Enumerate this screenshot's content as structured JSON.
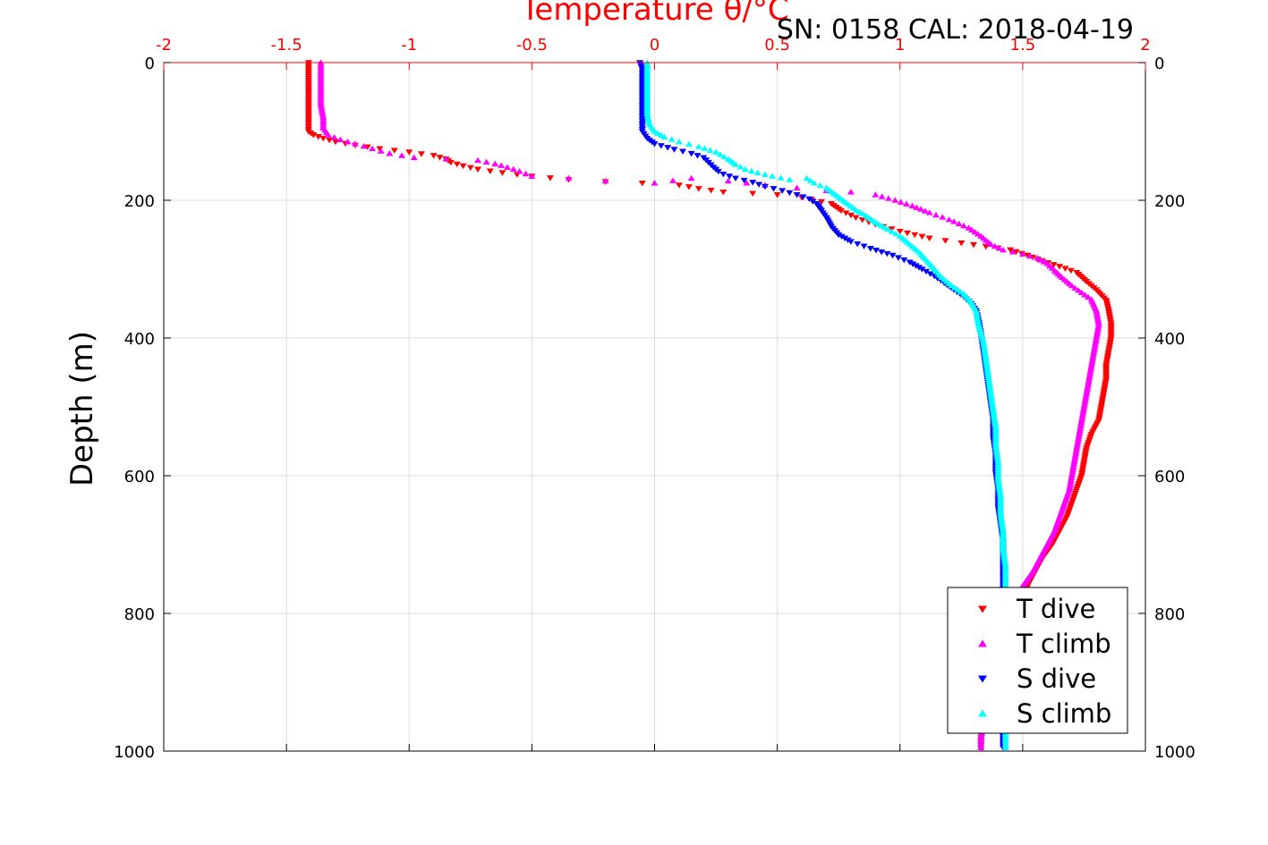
{
  "chart_data": {
    "type": "scatter",
    "title": "Temperature θ/°C",
    "header_text": "SN: 0158  CAL: 2018-04-19",
    "xlabel": "Temperature θ/°C",
    "ylabel": "Depth (m)",
    "xlim": [
      -2,
      2
    ],
    "ylim": [
      0,
      1000
    ],
    "y_reversed": true,
    "x_axis_position": "top",
    "x_ticks": [
      -2,
      -1.5,
      -1,
      -0.5,
      0,
      0.5,
      1,
      1.5,
      2
    ],
    "x_tick_labels": [
      "-2",
      "-1.5",
      "-1",
      "-0.5",
      "0",
      "0.5",
      "1",
      "1.5",
      "2"
    ],
    "y_ticks": [
      0,
      200,
      400,
      600,
      800,
      1000
    ],
    "y_tick_labels": [
      "0",
      "200",
      "400",
      "600",
      "800",
      "1000"
    ],
    "grid": true,
    "legend_position": "bottom-right",
    "colors": {
      "t_dive": "#ff0000",
      "t_climb": "#ff00ff",
      "s_dive": "#0000ff",
      "s_climb": "#00ffff",
      "axis_top": "#ff0000",
      "axis_other": "#000000",
      "grid": "#dddddd"
    },
    "series": [
      {
        "name": "T dive",
        "marker": "triangle-down",
        "color": "#ff0000",
        "points": [
          [
            -1.41,
            0
          ],
          [
            -1.41,
            20
          ],
          [
            -1.41,
            40
          ],
          [
            -1.41,
            60
          ],
          [
            -1.41,
            80
          ],
          [
            -1.41,
            100
          ],
          [
            -1.39,
            105
          ],
          [
            -1.35,
            110
          ],
          [
            -1.3,
            115
          ],
          [
            -1.22,
            120
          ],
          [
            -1.12,
            125
          ],
          [
            -1.0,
            130
          ],
          [
            -0.9,
            135
          ],
          [
            -0.85,
            140
          ],
          [
            -0.83,
            145
          ],
          [
            -0.78,
            150
          ],
          [
            -0.72,
            155
          ],
          [
            -0.62,
            160
          ],
          [
            -0.5,
            165
          ],
          [
            -0.35,
            170
          ],
          [
            -0.2,
            173
          ],
          [
            -0.05,
            175
          ],
          [
            0.1,
            178
          ],
          [
            0.18,
            183
          ],
          [
            0.28,
            188
          ],
          [
            0.4,
            190
          ],
          [
            0.5,
            192
          ],
          [
            0.6,
            196
          ],
          [
            0.72,
            205
          ],
          [
            0.76,
            215
          ],
          [
            0.82,
            225
          ],
          [
            0.9,
            235
          ],
          [
            1.0,
            245
          ],
          [
            1.12,
            255
          ],
          [
            1.25,
            262
          ],
          [
            1.35,
            267
          ],
          [
            1.45,
            272
          ],
          [
            1.52,
            280
          ],
          [
            1.58,
            288
          ],
          [
            1.65,
            296
          ],
          [
            1.72,
            305
          ],
          [
            1.76,
            318
          ],
          [
            1.8,
            330
          ],
          [
            1.84,
            345
          ],
          [
            1.85,
            360
          ],
          [
            1.86,
            380
          ],
          [
            1.86,
            400
          ],
          [
            1.85,
            420
          ],
          [
            1.84,
            440
          ],
          [
            1.84,
            460
          ],
          [
            1.83,
            480
          ],
          [
            1.82,
            500
          ],
          [
            1.81,
            520
          ],
          [
            1.78,
            540
          ],
          [
            1.76,
            560
          ],
          [
            1.75,
            580
          ],
          [
            1.74,
            600
          ],
          [
            1.72,
            620
          ],
          [
            1.7,
            640
          ],
          [
            1.68,
            660
          ],
          [
            1.65,
            680
          ],
          [
            1.62,
            700
          ],
          [
            1.58,
            720
          ],
          [
            1.55,
            740
          ],
          [
            1.52,
            760
          ],
          [
            1.5,
            780
          ],
          [
            1.48,
            800
          ],
          [
            1.45,
            820
          ],
          [
            1.43,
            840
          ],
          [
            1.41,
            860
          ],
          [
            1.39,
            880
          ],
          [
            1.37,
            900
          ],
          [
            1.36,
            920
          ],
          [
            1.35,
            940
          ],
          [
            1.34,
            960
          ],
          [
            1.33,
            980
          ],
          [
            1.33,
            995
          ]
        ]
      },
      {
        "name": "T climb",
        "marker": "triangle-up",
        "color": "#ff00ff",
        "points": [
          [
            -1.36,
            0
          ],
          [
            -1.36,
            20
          ],
          [
            -1.36,
            40
          ],
          [
            -1.36,
            60
          ],
          [
            -1.35,
            80
          ],
          [
            -1.35,
            95
          ],
          [
            -1.33,
            105
          ],
          [
            -1.28,
            112
          ],
          [
            -1.22,
            118
          ],
          [
            -1.15,
            125
          ],
          [
            -1.08,
            132
          ],
          [
            -0.98,
            138
          ],
          [
            -0.85,
            140
          ],
          [
            -0.72,
            142
          ],
          [
            -0.65,
            147
          ],
          [
            -0.6,
            152
          ],
          [
            -0.55,
            158
          ],
          [
            -0.5,
            165
          ],
          [
            -0.35,
            168
          ],
          [
            -0.2,
            172
          ],
          [
            0.0,
            175
          ],
          [
            0.15,
            168
          ],
          [
            0.3,
            172
          ],
          [
            0.45,
            178
          ],
          [
            0.58,
            182
          ],
          [
            0.7,
            186
          ],
          [
            0.8,
            188
          ],
          [
            0.9,
            192
          ],
          [
            0.98,
            200
          ],
          [
            1.05,
            208
          ],
          [
            1.12,
            218
          ],
          [
            1.2,
            228
          ],
          [
            1.28,
            240
          ],
          [
            1.33,
            252
          ],
          [
            1.37,
            264
          ],
          [
            1.42,
            272
          ],
          [
            1.5,
            278
          ],
          [
            1.56,
            284
          ],
          [
            1.6,
            292
          ],
          [
            1.63,
            302
          ],
          [
            1.66,
            312
          ],
          [
            1.7,
            324
          ],
          [
            1.74,
            334
          ],
          [
            1.78,
            344
          ],
          [
            1.8,
            360
          ],
          [
            1.81,
            380
          ],
          [
            1.8,
            400
          ],
          [
            1.79,
            420
          ],
          [
            1.78,
            440
          ],
          [
            1.77,
            460
          ],
          [
            1.76,
            480
          ],
          [
            1.75,
            500
          ],
          [
            1.74,
            520
          ],
          [
            1.73,
            540
          ],
          [
            1.72,
            560
          ],
          [
            1.71,
            580
          ],
          [
            1.7,
            600
          ],
          [
            1.69,
            620
          ],
          [
            1.67,
            640
          ],
          [
            1.65,
            660
          ],
          [
            1.63,
            680
          ],
          [
            1.6,
            700
          ],
          [
            1.57,
            720
          ],
          [
            1.54,
            740
          ],
          [
            1.5,
            760
          ],
          [
            1.47,
            780
          ],
          [
            1.45,
            800
          ],
          [
            1.43,
            820
          ],
          [
            1.41,
            840
          ],
          [
            1.39,
            860
          ],
          [
            1.37,
            880
          ],
          [
            1.36,
            900
          ],
          [
            1.35,
            920
          ],
          [
            1.34,
            940
          ],
          [
            1.34,
            960
          ],
          [
            1.33,
            980
          ],
          [
            1.33,
            995
          ]
        ]
      },
      {
        "name": "S dive",
        "marker": "triangle-down",
        "color": "#0000ff",
        "points": [
          [
            -0.06,
            0
          ],
          [
            -0.05,
            10
          ],
          [
            -0.05,
            25
          ],
          [
            -0.05,
            45
          ],
          [
            -0.05,
            65
          ],
          [
            -0.05,
            85
          ],
          [
            -0.05,
            100
          ],
          [
            -0.03,
            110
          ],
          [
            0.0,
            118
          ],
          [
            0.08,
            126
          ],
          [
            0.15,
            132
          ],
          [
            0.2,
            138
          ],
          [
            0.22,
            145
          ],
          [
            0.24,
            152
          ],
          [
            0.26,
            158
          ],
          [
            0.28,
            162
          ],
          [
            0.33,
            168
          ],
          [
            0.4,
            174
          ],
          [
            0.45,
            180
          ],
          [
            0.52,
            186
          ],
          [
            0.58,
            192
          ],
          [
            0.63,
            198
          ],
          [
            0.66,
            205
          ],
          [
            0.68,
            215
          ],
          [
            0.7,
            225
          ],
          [
            0.72,
            238
          ],
          [
            0.75,
            250
          ],
          [
            0.8,
            260
          ],
          [
            0.88,
            270
          ],
          [
            0.97,
            280
          ],
          [
            1.04,
            290
          ],
          [
            1.09,
            300
          ],
          [
            1.14,
            310
          ],
          [
            1.18,
            320
          ],
          [
            1.22,
            330
          ],
          [
            1.26,
            340
          ],
          [
            1.29,
            350
          ],
          [
            1.31,
            360
          ],
          [
            1.32,
            375
          ],
          [
            1.33,
            395
          ],
          [
            1.34,
            420
          ],
          [
            1.35,
            445
          ],
          [
            1.36,
            470
          ],
          [
            1.37,
            495
          ],
          [
            1.38,
            520
          ],
          [
            1.38,
            545
          ],
          [
            1.39,
            570
          ],
          [
            1.39,
            595
          ],
          [
            1.4,
            620
          ],
          [
            1.4,
            645
          ],
          [
            1.41,
            670
          ],
          [
            1.42,
            695
          ],
          [
            1.42,
            720
          ],
          [
            1.42,
            745
          ],
          [
            1.42,
            770
          ],
          [
            1.42,
            795
          ],
          [
            1.42,
            820
          ],
          [
            1.42,
            845
          ],
          [
            1.42,
            870
          ],
          [
            1.42,
            895
          ],
          [
            1.42,
            920
          ],
          [
            1.42,
            945
          ],
          [
            1.42,
            970
          ],
          [
            1.42,
            995
          ]
        ]
      },
      {
        "name": "S climb",
        "marker": "triangle-up",
        "color": "#00ffff",
        "points": [
          [
            -0.03,
            0
          ],
          [
            -0.03,
            15
          ],
          [
            -0.03,
            35
          ],
          [
            -0.03,
            55
          ],
          [
            -0.03,
            75
          ],
          [
            -0.02,
            90
          ],
          [
            0.0,
            100
          ],
          [
            0.04,
            108
          ],
          [
            0.1,
            115
          ],
          [
            0.18,
            122
          ],
          [
            0.25,
            130
          ],
          [
            0.3,
            140
          ],
          [
            0.33,
            148
          ],
          [
            0.37,
            155
          ],
          [
            0.42,
            160
          ],
          [
            0.48,
            165
          ],
          [
            0.55,
            170
          ],
          [
            0.62,
            168
          ],
          [
            0.65,
            175
          ],
          [
            0.7,
            182
          ],
          [
            0.73,
            190
          ],
          [
            0.76,
            198
          ],
          [
            0.79,
            206
          ],
          [
            0.82,
            214
          ],
          [
            0.86,
            222
          ],
          [
            0.9,
            232
          ],
          [
            0.95,
            242
          ],
          [
            1.0,
            252
          ],
          [
            1.04,
            264
          ],
          [
            1.08,
            276
          ],
          [
            1.11,
            288
          ],
          [
            1.14,
            300
          ],
          [
            1.17,
            312
          ],
          [
            1.21,
            324
          ],
          [
            1.26,
            336
          ],
          [
            1.29,
            348
          ],
          [
            1.31,
            360
          ],
          [
            1.32,
            380
          ],
          [
            1.34,
            405
          ],
          [
            1.35,
            430
          ],
          [
            1.36,
            455
          ],
          [
            1.37,
            480
          ],
          [
            1.38,
            505
          ],
          [
            1.39,
            530
          ],
          [
            1.39,
            555
          ],
          [
            1.4,
            580
          ],
          [
            1.4,
            605
          ],
          [
            1.41,
            630
          ],
          [
            1.41,
            655
          ],
          [
            1.42,
            680
          ],
          [
            1.42,
            705
          ],
          [
            1.43,
            730
          ],
          [
            1.43,
            755
          ],
          [
            1.43,
            780
          ],
          [
            1.43,
            805
          ],
          [
            1.43,
            830
          ],
          [
            1.43,
            855
          ],
          [
            1.43,
            880
          ],
          [
            1.43,
            905
          ],
          [
            1.43,
            930
          ],
          [
            1.43,
            955
          ],
          [
            1.43,
            980
          ],
          [
            1.43,
            995
          ]
        ]
      }
    ]
  }
}
